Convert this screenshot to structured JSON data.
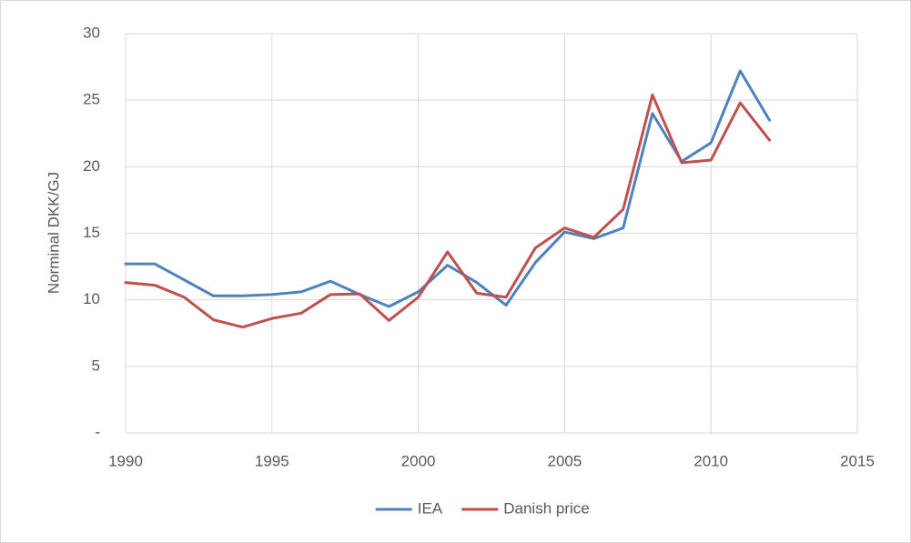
{
  "chart_data": {
    "type": "line",
    "y_label": "Norminal DKK/GJ",
    "x": [
      1990,
      1991,
      1992,
      1993,
      1994,
      1995,
      1996,
      1997,
      1998,
      1999,
      2000,
      2001,
      2002,
      2003,
      2004,
      2005,
      2006,
      2007,
      2008,
      2009,
      2010,
      2011,
      2012
    ],
    "series": [
      {
        "name": "IEA",
        "color": "#4f81bd",
        "values": [
          12.7,
          12.7,
          11.5,
          10.3,
          10.3,
          10.4,
          10.6,
          11.4,
          10.4,
          9.5,
          10.6,
          12.6,
          11.3,
          9.6,
          12.8,
          15.1,
          14.6,
          15.4,
          24.0,
          20.4,
          21.8,
          27.2,
          23.5
        ]
      },
      {
        "name": "Danish price",
        "color": "#c0504d",
        "values": [
          11.3,
          11.1,
          10.2,
          8.5,
          7.95,
          8.6,
          9.0,
          10.4,
          10.45,
          8.45,
          10.2,
          13.6,
          10.5,
          10.2,
          13.9,
          15.4,
          14.7,
          16.8,
          25.4,
          20.3,
          20.5,
          24.8,
          22.0
        ]
      }
    ],
    "xlim": [
      1990,
      2015
    ],
    "xticks": [
      1990,
      1995,
      2000,
      2005,
      2010,
      2015
    ],
    "ylim": [
      0,
      30
    ],
    "yticks": [
      {
        "value": 0,
        "label": "-"
      },
      5,
      10,
      15,
      20,
      25,
      30
    ],
    "grid": true,
    "legend": "bottom"
  }
}
